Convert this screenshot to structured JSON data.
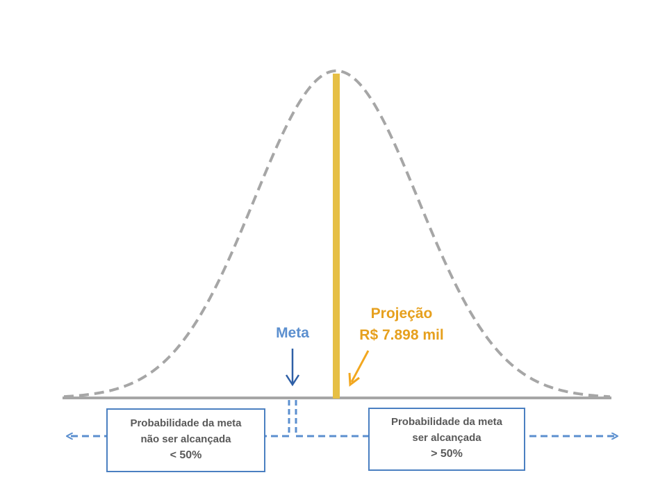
{
  "colors": {
    "curve": "#a6a6a6",
    "axis": "#a6a6a6",
    "projection_bar": "#e6bf45",
    "projection_text": "#e6a01e",
    "arrow_projection": "#f2a71f",
    "meta_text": "#5b8fcf",
    "meta_arrow": "#2e5fa6",
    "dashed_blue": "#5b8fcf",
    "box_border": "#4a7fc1",
    "box_text": "#595959"
  },
  "meta": {
    "label": "Meta"
  },
  "projection": {
    "title": "Projeção",
    "value": "R$ 7.898 mil"
  },
  "left_box": {
    "line1": "Probabilidade  da meta",
    "line2": "não ser alcançada",
    "line3": "< 50%"
  },
  "right_box": {
    "line1": "Probabilidade  da meta",
    "line2": "ser alcançada",
    "line3": "> 50%"
  }
}
